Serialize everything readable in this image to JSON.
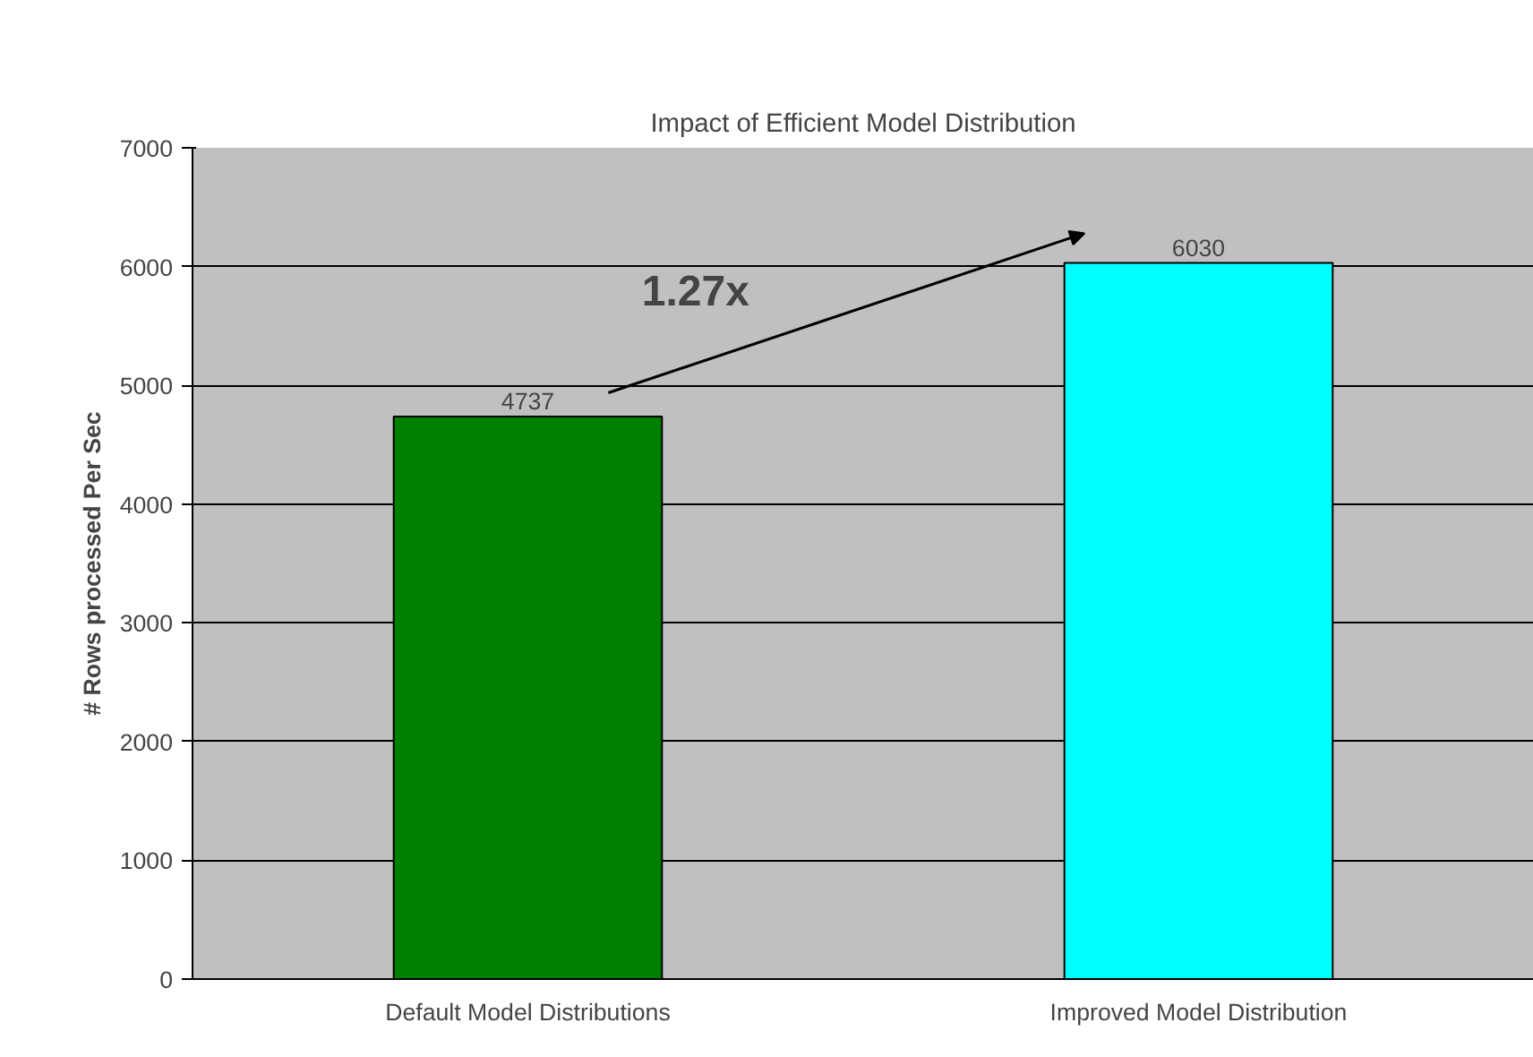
{
  "chart_data": {
    "type": "bar",
    "title": "Impact of Efficient Model Distribution",
    "ylabel": "# Rows processed Per Sec",
    "categories": [
      "Default Model Distributions",
      "Improved Model Distribution"
    ],
    "values": [
      4737,
      6030
    ],
    "colors": [
      "#008000",
      "#00ffff"
    ],
    "ylim": [
      0,
      7000
    ],
    "yticks": [
      0,
      1000,
      2000,
      3000,
      4000,
      5000,
      6000,
      7000
    ],
    "grid": "y",
    "data_labels": true,
    "annotations": [
      "1.27x"
    ]
  }
}
